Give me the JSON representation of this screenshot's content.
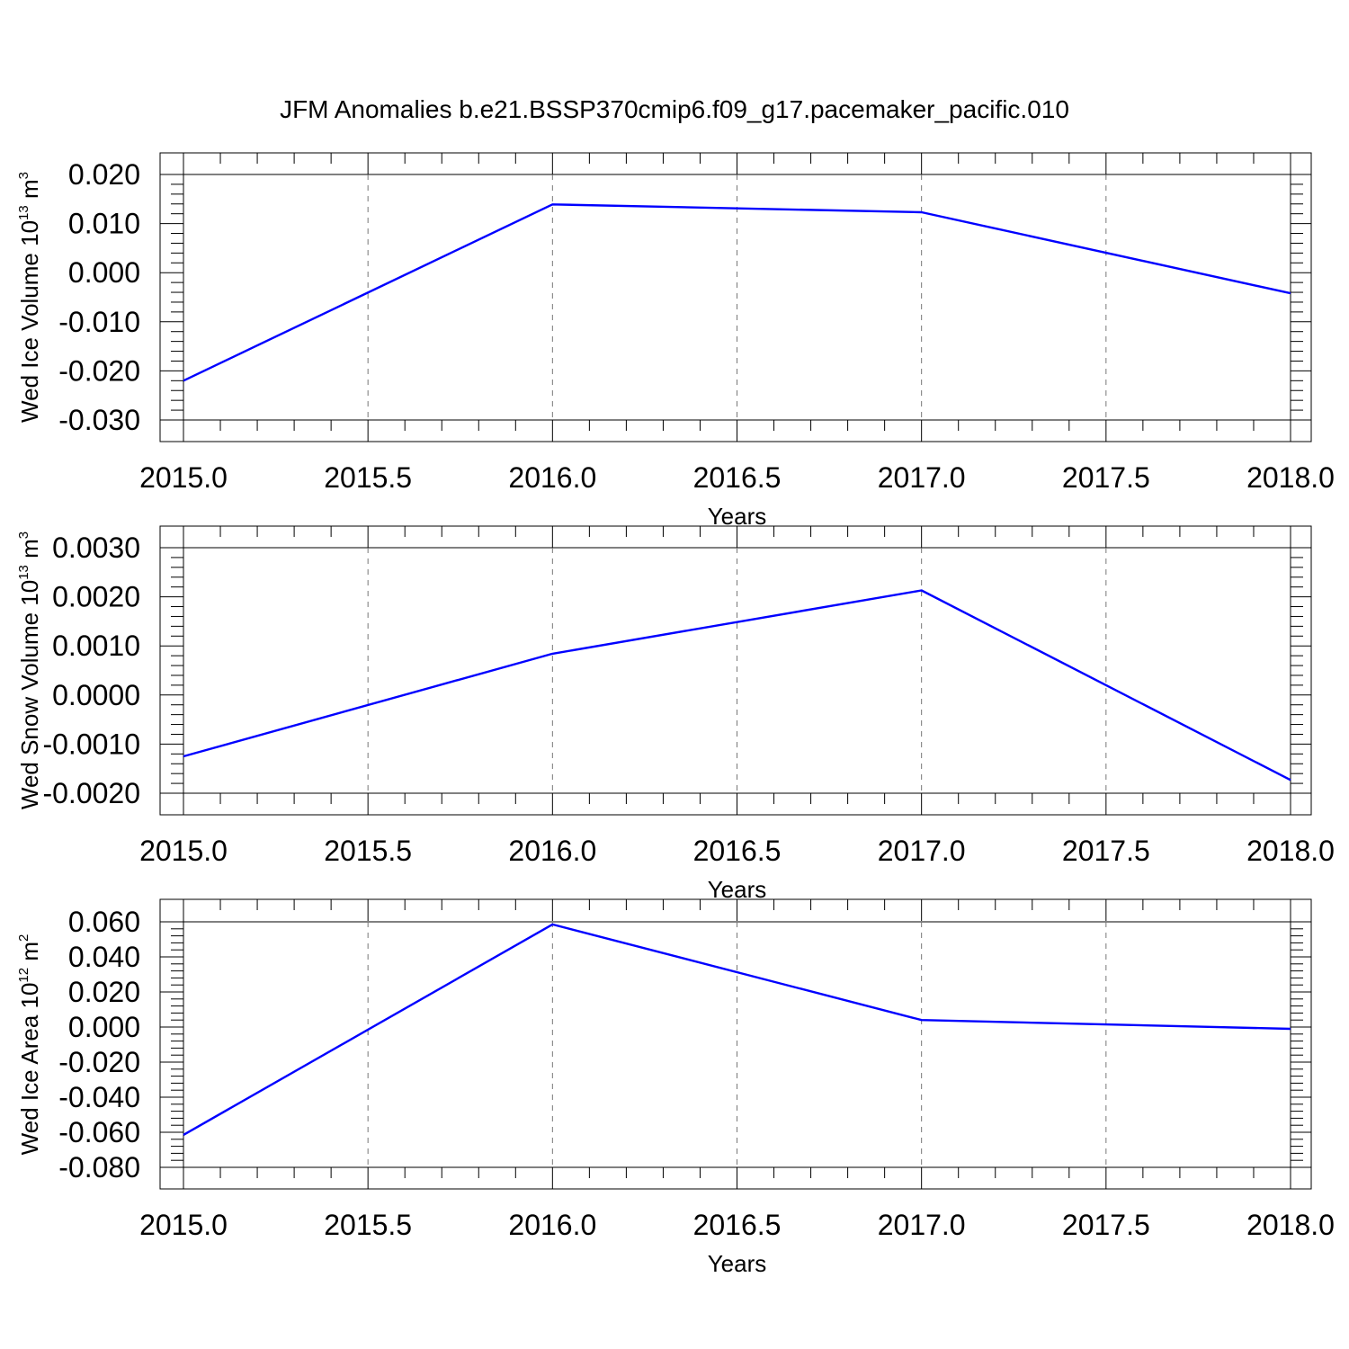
{
  "title": "JFM Anomalies b.e21.BSSP370cmip6.f09_g17.pacemaker_pacific.010",
  "colors": {
    "line": "#0000ff",
    "grid": "#777777",
    "axis": "#000000"
  },
  "chart_data": [
    {
      "type": "line",
      "xlabel": "Years",
      "ylabel": {
        "text": "Wed Ice Volume 10",
        "sup1": "13",
        "unit": " m",
        "sup2": "3"
      },
      "x": [
        2015,
        2016,
        2017,
        2018
      ],
      "series": [
        {
          "values": [
            -0.022,
            0.0139,
            0.0123,
            -0.0042
          ]
        }
      ],
      "xlim": [
        2015,
        2018
      ],
      "ylim": [
        -0.03,
        0.02
      ],
      "x_ticks": [
        "2015.0",
        "2015.5",
        "2016.0",
        "2016.5",
        "2017.0",
        "2017.5",
        "2018.0"
      ],
      "y_ticks": [
        "0.020",
        "0.010",
        "0.000",
        "-0.010",
        "-0.020",
        "-0.030"
      ],
      "grid": "vertical dashed"
    },
    {
      "type": "line",
      "xlabel": "Years",
      "ylabel": {
        "text": "Wed Snow Volume 10",
        "sup1": "13",
        "unit": " m",
        "sup2": "3"
      },
      "x": [
        2015,
        2016,
        2017,
        2018
      ],
      "series": [
        {
          "values": [
            -0.00125,
            0.00084,
            0.00213,
            -0.00173
          ]
        }
      ],
      "xlim": [
        2015,
        2018
      ],
      "ylim": [
        -0.002,
        0.003
      ],
      "x_ticks": [
        "2015.0",
        "2015.5",
        "2016.0",
        "2016.5",
        "2017.0",
        "2017.5",
        "2018.0"
      ],
      "y_ticks": [
        "0.0030",
        "0.0020",
        "0.0010",
        "0.0000",
        "-0.0010",
        "-0.0020"
      ],
      "grid": "vertical dashed"
    },
    {
      "type": "line",
      "xlabel": "Years",
      "ylabel": {
        "text": "Wed Ice Area 10",
        "sup1": "12",
        "unit": " m",
        "sup2": "2"
      },
      "x": [
        2015,
        2016,
        2017,
        2018
      ],
      "series": [
        {
          "values": [
            -0.0615,
            0.0585,
            0.004,
            -0.001
          ]
        }
      ],
      "xlim": [
        2015,
        2018
      ],
      "ylim": [
        -0.08,
        0.06
      ],
      "x_ticks": [
        "2015.0",
        "2015.5",
        "2016.0",
        "2016.5",
        "2017.0",
        "2017.5",
        "2018.0"
      ],
      "y_ticks": [
        "0.060",
        "0.040",
        "0.020",
        "0.000",
        "-0.020",
        "-0.040",
        "-0.060",
        "-0.080"
      ],
      "grid": "vertical dashed"
    }
  ]
}
